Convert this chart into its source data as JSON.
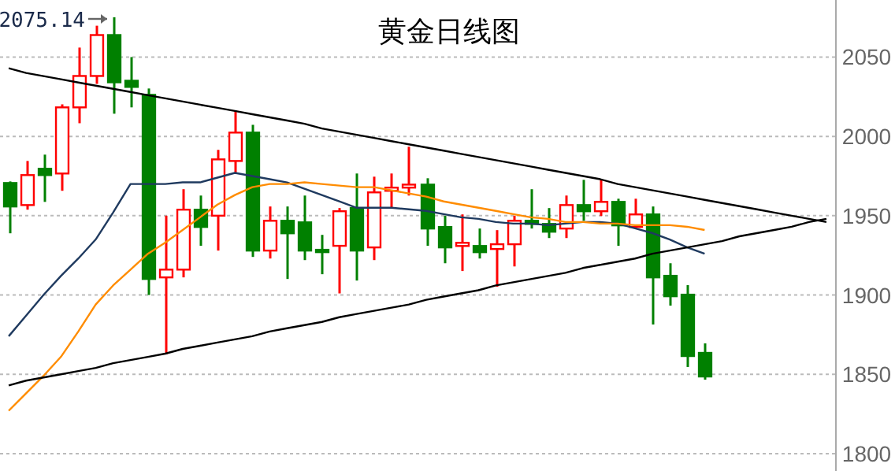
{
  "chart_data": {
    "type": "candlestick",
    "title": "黄金日线图",
    "categories": [
      null,
      null,
      null,
      null,
      null,
      null,
      null,
      null,
      null,
      null,
      null,
      null,
      null,
      null,
      null,
      null,
      null,
      null,
      null,
      null,
      null,
      null,
      null,
      null,
      null,
      null,
      null,
      null,
      null,
      null,
      null,
      null,
      null,
      null,
      null,
      null,
      null,
      null,
      null,
      null,
      null,
      null,
      null,
      null,
      null,
      null,
      null,
      null
    ],
    "ohlc": [
      [
        1970.6,
        1971.6,
        1938.9,
        1955.8
      ],
      [
        1956.7,
        1984.5,
        1953.8,
        1975.6
      ],
      [
        1979.6,
        1988.5,
        1958.7,
        1975.6
      ],
      [
        1976.6,
        2020.2,
        1965.7,
        2018.3
      ],
      [
        2018.3,
        2056,
        2008.3,
        2038.1
      ],
      [
        2038.1,
        2069.8,
        2033.1,
        2063.9
      ],
      [
        2063.9,
        2075.14,
        2014.3,
        2034.1
      ],
      [
        2035.1,
        2050,
        2018.3,
        2031.2
      ],
      [
        2026.2,
        2030.2,
        1900,
        1910.1
      ],
      [
        1911.1,
        1950,
        1862.5,
        1916
      ],
      [
        1916,
        1966.7,
        1911.1,
        1953.8
      ],
      [
        1953.8,
        1962.7,
        1931,
        1942.9
      ],
      [
        1950,
        1991.5,
        1928,
        1985.5
      ],
      [
        1984.5,
        2016.3,
        1976.6,
        2002.4
      ],
      [
        2002.4,
        2007.3,
        1924,
        1928
      ],
      [
        1928,
        1955.8,
        1923,
        1946.8
      ],
      [
        1946.8,
        1955.8,
        1910.1,
        1938.9
      ],
      [
        1945.8,
        1962.7,
        1922,
        1928
      ],
      [
        1928.5,
        1937.9,
        1913.1,
        1928
      ],
      [
        1931,
        1954.8,
        1901,
        1952.8
      ],
      [
        1954.8,
        1976.6,
        1909.1,
        1928
      ],
      [
        1930,
        1974.6,
        1922,
        1964.7
      ],
      [
        1965.7,
        1976.6,
        1954.8,
        1967.7
      ],
      [
        1967.7,
        1993.5,
        1962.7,
        1969.6
      ],
      [
        1969.6,
        1973.6,
        1931,
        1941.9
      ],
      [
        1942.9,
        1950,
        1920,
        1930
      ],
      [
        1930.9,
        1950.8,
        1915.1,
        1932.9
      ],
      [
        1930.9,
        1941.9,
        1923,
        1927
      ],
      [
        1929,
        1940.9,
        1905.2,
        1932
      ],
      [
        1932,
        1950,
        1918,
        1946.8
      ],
      [
        1946.8,
        1966.7,
        1941.9,
        1944.8
      ],
      [
        1944.8,
        1954.8,
        1935.9,
        1939.9
      ],
      [
        1941.9,
        1962.7,
        1935.9,
        1956.7
      ],
      [
        1956.7,
        1972.6,
        1946.8,
        1952.8
      ],
      [
        1952.8,
        1972.6,
        1949.8,
        1958.7
      ],
      [
        1958.7,
        1960.7,
        1931,
        1943.9
      ],
      [
        1942.9,
        1960.7,
        1941.9,
        1950.8
      ],
      [
        1950.8,
        1955.8,
        1881.4,
        1911.1
      ],
      [
        1912.1,
        1920,
        1893.3,
        1899.2
      ],
      [
        1900.2,
        1906.2,
        1854.6,
        1861.5
      ],
      [
        1863.5,
        1869.5,
        1846.6,
        1848.6
      ],
      null,
      null,
      null,
      null,
      null,
      null,
      null
    ],
    "colors": [
      "#008000",
      "#ff0000",
      "#008000",
      "#ff0000",
      "#ff0000",
      "#ff0000",
      "#008000",
      "#008000",
      "#008000",
      "#ff0000",
      "#ff0000",
      "#008000",
      "#ff0000",
      "#ff0000",
      "#008000",
      "#ff0000",
      "#008000",
      "#008000",
      "#008000",
      "#ff0000",
      "#008000",
      "#ff0000",
      "#ff0000",
      "#ff0000",
      "#008000",
      "#008000",
      "#ff0000",
      "#008000",
      "#ff0000",
      "#ff0000",
      "#008000",
      "#008000",
      "#ff0000",
      "#008000",
      "#ff0000",
      "#008000",
      "#ff0000",
      "#008000",
      "#008000",
      "#008000",
      "#008000",
      null,
      null,
      null,
      null,
      null,
      null,
      null
    ],
    "ylim": [
      1791,
      2086
    ],
    "yticks": [
      1800,
      1850,
      1900,
      1950,
      2000,
      2050
    ],
    "grid": "y",
    "annotations": [
      "2075.14"
    ],
    "series": [
      {
        "type": "line",
        "color": "#1f3a5f",
        "values": [
          1874,
          1887,
          1900,
          1912,
          1923,
          1935,
          1952,
          1970,
          1970,
          1970,
          1971,
          1971,
          1974,
          1977,
          1975,
          1973,
          1971,
          1967,
          1963,
          1959,
          1955,
          1955,
          1955,
          1954,
          1953,
          1951,
          1949,
          1948,
          1946,
          1945,
          1945,
          1944,
          1945,
          1946,
          1946,
          1945,
          1942,
          1939,
          1935,
          1930,
          1926,
          null,
          null,
          null,
          null,
          null,
          null,
          null
        ]
      },
      {
        "type": "line",
        "color": "#ff8c00",
        "values": [
          1827,
          1838,
          1849,
          1861,
          1877,
          1894,
          1906,
          1916,
          1926,
          1933,
          1941,
          1949,
          1957,
          1963,
          1968,
          1970,
          1970,
          1971,
          1970,
          1969,
          1968,
          1968,
          1966,
          1964,
          1962,
          1959,
          1957,
          1955,
          1953,
          1951,
          1949,
          1948,
          1946,
          1946,
          1945,
          1945,
          1944,
          1944,
          1944,
          1943,
          1941,
          null,
          null,
          null,
          null,
          null,
          null,
          null
        ]
      },
      {
        "type": "line",
        "color": "#000000",
        "values": [
          2043,
          2040,
          2038,
          2036,
          2034,
          2032,
          2030,
          2028,
          2026,
          2024,
          2022,
          2020,
          2018,
          2016,
          2014,
          2012,
          2010,
          2008,
          2005,
          2003,
          2001,
          1999,
          1997,
          1995,
          1993,
          1991,
          1989,
          1987,
          1985,
          1983,
          1981,
          1979,
          1977,
          1975,
          1973,
          1970,
          1968,
          1966,
          1964,
          1962,
          1960,
          1958,
          1956,
          1954,
          1952,
          1950,
          1948,
          1946
        ]
      },
      {
        "type": "line",
        "color": "#000000",
        "values": [
          1843,
          1846,
          1848,
          1850,
          1852,
          1854,
          1857,
          1859,
          1861,
          1863,
          1866,
          1868,
          1870,
          1872,
          1874,
          1877,
          1879,
          1881,
          1883,
          1886,
          1888,
          1890,
          1892,
          1894,
          1897,
          1899,
          1901,
          1903,
          1906,
          1908,
          1910,
          1912,
          1914,
          1917,
          1919,
          1921,
          1923,
          1926,
          1928,
          1930,
          1932,
          1934,
          1937,
          1939,
          1941,
          1943,
          1946,
          1948
        ]
      }
    ]
  }
}
